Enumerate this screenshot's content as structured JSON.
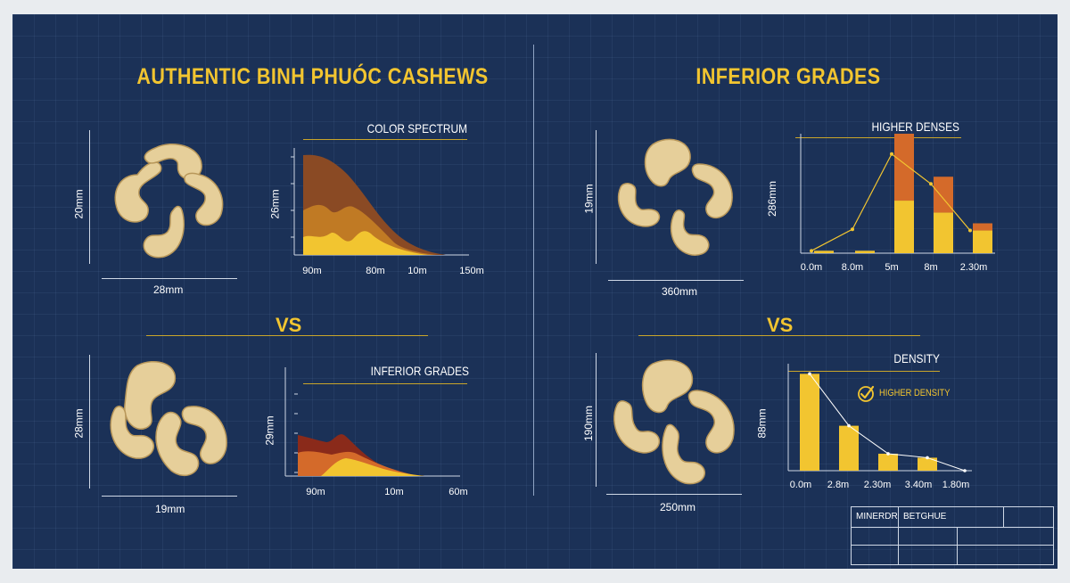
{
  "left": {
    "title": "AUTHENTIC BINH PHUÓC CASHEWS",
    "top": {
      "dim_vertical": "20mm",
      "dim_horizontal": "28mm",
      "chart_title": "COLOR SPECTRUM",
      "y_label": "26mm",
      "ticks": [
        "90m",
        "80m",
        "10m",
        "150m"
      ]
    },
    "vs": "VS",
    "bottom": {
      "dim_vertical": "28mm",
      "dim_horizontal": "19mm",
      "chart_title": "INFERIOR GRADES",
      "y_label": "29mm",
      "ticks": [
        "90m",
        "10m",
        "60m"
      ]
    }
  },
  "right": {
    "title": "INFERIOR GRADES",
    "top": {
      "dim_vertical": "19mm",
      "dim_horizontal": "360mm",
      "chart_title": "HIGHER DENSES",
      "y_label": "286mm",
      "ticks": [
        "0.0m",
        "8.0m",
        "5m",
        "8m",
        "2.30m"
      ]
    },
    "vs": "VS",
    "bottom": {
      "dim_vertical": "190mm",
      "dim_horizontal": "250mm",
      "chart_title": "DENSITY",
      "y_label": "88mm",
      "legend": "HIGHER DENSITY",
      "ticks": [
        "0.0m",
        "2.8m",
        "2.30m",
        "3.40m",
        "1.80m"
      ]
    }
  },
  "title_block": {
    "cell_1": "MINERDR",
    "cell_2": "BETGHUE"
  },
  "colors": {
    "background": "#1b3157",
    "accent": "#f2c530",
    "orange": "#d46a2a",
    "brown": "#8a4a24",
    "cashew": "#e6cf9a"
  },
  "chart_data": [
    {
      "type": "area",
      "title": "COLOR SPECTRUM",
      "ylabel": "26mm",
      "x": [
        "90m",
        "80m",
        "10m",
        "150m"
      ],
      "series": [
        {
          "values": [
            1.0,
            0.97,
            0.12,
            0.0
          ]
        },
        {
          "values": [
            0.35,
            0.45,
            0.1,
            0.0
          ]
        },
        {
          "values": [
            0.15,
            0.2,
            0.05,
            0.0
          ]
        }
      ]
    },
    {
      "type": "area",
      "title": "INFERIOR GRADES",
      "ylabel": "29mm",
      "x": [
        "90m",
        "10m",
        "60m"
      ],
      "series": [
        {
          "values": [
            0.4,
            0.3,
            0.0
          ]
        },
        {
          "values": [
            0.2,
            0.2,
            0.0
          ]
        },
        {
          "values": [
            0.08,
            0.15,
            0.0
          ]
        }
      ]
    },
    {
      "type": "bar",
      "title": "HIGHER DENSES",
      "ylabel": "286mm",
      "categories": [
        "0.0m",
        "8.0m",
        "5m",
        "8m",
        "2.30m"
      ],
      "series": [
        {
          "values": [
            0.02,
            0.02,
            0.44,
            0.34,
            0.19
          ]
        },
        {
          "values": [
            0.0,
            0.0,
            0.56,
            0.3,
            0.06
          ]
        }
      ],
      "line": [
        0.02,
        0.2,
        0.83,
        0.58,
        0.19
      ]
    },
    {
      "type": "bar",
      "title": "DENSITY",
      "ylabel": "88mm",
      "categories": [
        "0.0m",
        "2.8m",
        "2.30m",
        "3.40m",
        "1.80m"
      ],
      "series": [
        {
          "values": [
            0.97,
            0.45,
            0.17,
            0.13,
            0.0
          ]
        }
      ],
      "line": [
        0.97,
        0.45,
        0.17,
        0.13,
        0.0
      ]
    }
  ]
}
